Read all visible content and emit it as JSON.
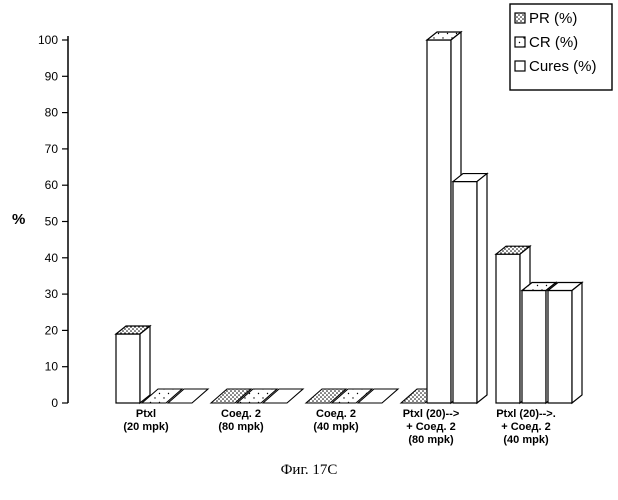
{
  "caption": "Фиг. 17C",
  "chart_data": {
    "type": "bar",
    "style": "3d-grouped",
    "ylabel": "%",
    "xlabel": "",
    "title": "",
    "ylim": [
      0,
      100
    ],
    "yticks": [
      0,
      10,
      20,
      30,
      40,
      50,
      60,
      70,
      80,
      90,
      100
    ],
    "grid": false,
    "legend": "top-right",
    "categories": [
      [
        "Ptxl",
        "(20 mpk)"
      ],
      [
        "Соед. 2",
        "(80 mpk)"
      ],
      [
        "Соед. 2",
        "(40 mpk)"
      ],
      [
        "Ptxl (20)-->",
        "+ Соед. 2",
        "(80 mpk)"
      ],
      [
        "Ptxl (20)-->.",
        "+ Соед. 2",
        "(40 mpk)"
      ]
    ],
    "series": [
      {
        "name": "PR (%)",
        "pattern": "dense-dots",
        "values": [
          19,
          0,
          0,
          0,
          41
        ]
      },
      {
        "name": "CR (%)",
        "pattern": "sparse-dots",
        "values": [
          0,
          0,
          0,
          100,
          31
        ]
      },
      {
        "name": "Cures (%)",
        "pattern": "blank",
        "values": [
          0,
          0,
          0,
          61,
          31
        ]
      }
    ]
  }
}
